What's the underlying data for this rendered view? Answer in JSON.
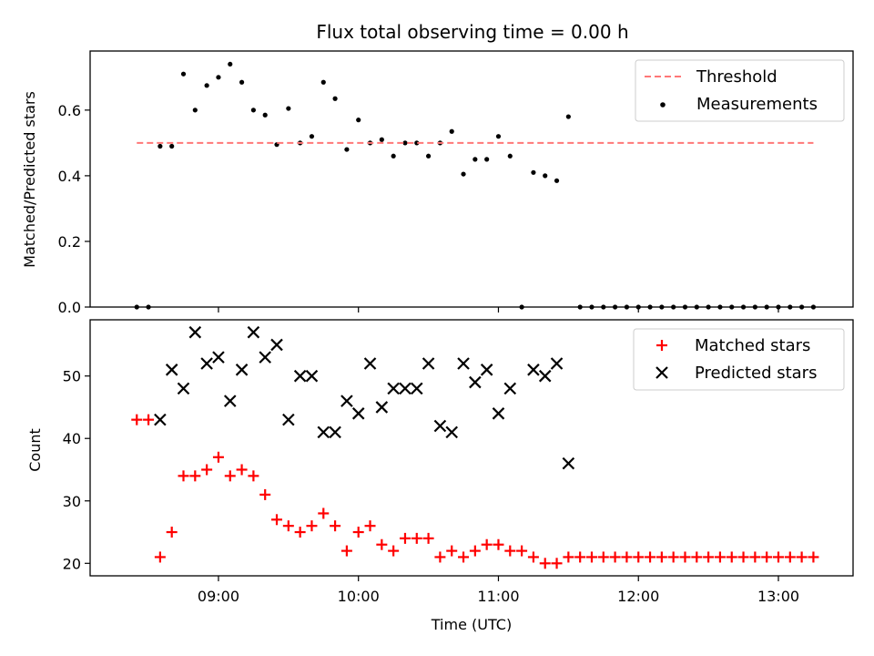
{
  "chart_data": {
    "title": "Flux total observing time = 0.00 h",
    "xlabel": "Time (UTC)",
    "x_ticks": [
      "09:00",
      "10:00",
      "11:00",
      "12:00",
      "13:00"
    ],
    "x_range": [
      "08:05",
      "13:32"
    ],
    "panels": [
      {
        "type": "scatter",
        "ylabel": "Matched/Predicted stars",
        "ylim": [
          0,
          0.78
        ],
        "y_ticks": [
          0.0,
          0.2,
          0.4,
          0.6
        ],
        "y_tick_labels": [
          "0.0",
          "0.2",
          "0.4",
          "0.6"
        ],
        "legend_position": "top-right",
        "threshold": {
          "name": "Threshold",
          "value": 0.5,
          "from": "08:25",
          "to": "13:15",
          "color": "#ff7777",
          "style": "dashed"
        },
        "series": [
          {
            "name": "Measurements",
            "marker": "dot",
            "color": "#000000",
            "x": [
              "08:25",
              "08:30",
              "08:35",
              "08:40",
              "08:45",
              "08:50",
              "08:55",
              "09:00",
              "09:05",
              "09:10",
              "09:15",
              "09:20",
              "09:25",
              "09:30",
              "09:35",
              "09:40",
              "09:45",
              "09:50",
              "09:55",
              "10:00",
              "10:05",
              "10:10",
              "10:15",
              "10:20",
              "10:25",
              "10:30",
              "10:35",
              "10:40",
              "10:45",
              "10:50",
              "10:55",
              "11:00",
              "11:05",
              "11:10",
              "11:15",
              "11:20",
              "11:25",
              "11:30",
              "11:35",
              "11:40",
              "11:45",
              "11:50",
              "11:55",
              "12:00",
              "12:05",
              "12:10",
              "12:15",
              "12:20",
              "12:25",
              "12:30",
              "12:35",
              "12:40",
              "12:45",
              "12:50",
              "12:55",
              "13:00",
              "13:05",
              "13:10",
              "13:15"
            ],
            "y": [
              0,
              0,
              0.49,
              0.49,
              0.71,
              0.6,
              0.675,
              0.7,
              0.74,
              0.685,
              0.6,
              0.585,
              0.495,
              0.605,
              0.5,
              0.52,
              0.685,
              0.635,
              0.48,
              0.57,
              0.5,
              0.51,
              0.46,
              0.5,
              0.5,
              0.46,
              0.5,
              0.535,
              0.405,
              0.45,
              0.45,
              0.52,
              0.46,
              0,
              0.41,
              0.4,
              0.385,
              0.58,
              0,
              0,
              0,
              0,
              0,
              0,
              0,
              0,
              0,
              0,
              0,
              0,
              0,
              0,
              0,
              0,
              0,
              0,
              0,
              0,
              0
            ]
          }
        ]
      },
      {
        "type": "scatter",
        "ylabel": "Count",
        "ylim": [
          18,
          59
        ],
        "y_ticks": [
          20,
          30,
          40,
          50
        ],
        "y_tick_labels": [
          "20",
          "30",
          "40",
          "50"
        ],
        "legend_position": "top-right",
        "series": [
          {
            "name": "Matched stars",
            "marker": "plus",
            "color": "#ff0000",
            "x": [
              "08:25",
              "08:30",
              "08:35",
              "08:40",
              "08:45",
              "08:50",
              "08:55",
              "09:00",
              "09:05",
              "09:10",
              "09:15",
              "09:20",
              "09:25",
              "09:30",
              "09:35",
              "09:40",
              "09:45",
              "09:50",
              "09:55",
              "10:00",
              "10:05",
              "10:10",
              "10:15",
              "10:20",
              "10:25",
              "10:30",
              "10:35",
              "10:40",
              "10:45",
              "10:50",
              "10:55",
              "11:00",
              "11:05",
              "11:10",
              "11:15",
              "11:20",
              "11:25",
              "11:30",
              "11:35",
              "11:40",
              "11:45",
              "11:50",
              "11:55",
              "12:00",
              "12:05",
              "12:10",
              "12:15",
              "12:20",
              "12:25",
              "12:30",
              "12:35",
              "12:40",
              "12:45",
              "12:50",
              "12:55",
              "13:00",
              "13:05",
              "13:10",
              "13:15"
            ],
            "y": [
              43,
              43,
              21,
              25,
              34,
              34,
              35,
              37,
              34,
              35,
              34,
              31,
              27,
              26,
              25,
              26,
              28,
              26,
              22,
              25,
              26,
              23,
              22,
              24,
              24,
              24,
              21,
              22,
              21,
              22,
              23,
              23,
              22,
              22,
              21,
              20,
              20,
              21,
              21,
              21,
              21,
              21,
              21,
              21,
              21,
              21,
              21,
              21,
              21,
              21,
              21,
              21,
              21,
              21,
              21,
              21,
              21,
              21,
              21
            ]
          },
          {
            "name": "Predicted stars",
            "marker": "x",
            "color": "#000000",
            "x": [
              "08:35",
              "08:40",
              "08:45",
              "08:50",
              "08:55",
              "09:00",
              "09:05",
              "09:10",
              "09:15",
              "09:20",
              "09:25",
              "09:30",
              "09:35",
              "09:40",
              "09:45",
              "09:50",
              "09:55",
              "10:00",
              "10:05",
              "10:10",
              "10:15",
              "10:20",
              "10:25",
              "10:30",
              "10:35",
              "10:40",
              "10:45",
              "10:50",
              "10:55",
              "11:00",
              "11:05",
              "11:15",
              "11:20",
              "11:25",
              "11:30"
            ],
            "y": [
              43,
              51,
              48,
              57,
              52,
              53,
              46,
              51,
              57,
              53,
              55,
              43,
              50,
              50,
              41,
              41,
              46,
              44,
              52,
              45,
              48,
              48,
              48,
              52,
              42,
              41,
              52,
              49,
              51,
              44,
              48,
              51,
              50,
              52,
              36
            ]
          }
        ]
      }
    ]
  }
}
